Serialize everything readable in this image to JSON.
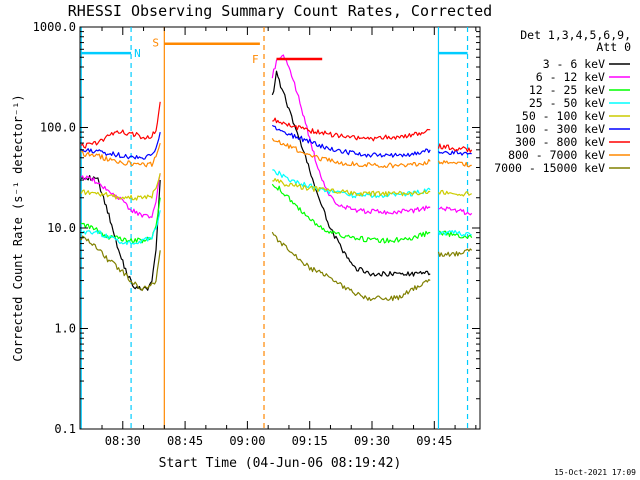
{
  "chart_data": {
    "type": "line",
    "title": "RHESSI Observing Summary Count Rates, Corrected",
    "xlabel": "Start Time (04-Jun-06 08:19:42)",
    "ylabel": "Corrected Count Rate (s⁻¹ detector⁻¹)",
    "y_scale": "log",
    "ylim": [
      0.1,
      1000
    ],
    "xlim": [
      "08:19:42",
      "09:56:00"
    ],
    "y_ticks": [
      {
        "value": 1000,
        "label": "1000.0"
      },
      {
        "value": 100,
        "label": "100.0"
      },
      {
        "value": 10,
        "label": "10.0"
      },
      {
        "value": 1,
        "label": "1.0"
      },
      {
        "value": 0.1,
        "label": "0.1"
      }
    ],
    "x_ticks": [
      {
        "value": "08:30",
        "label": "08:30"
      },
      {
        "value": "08:45",
        "label": "08:45"
      },
      {
        "value": "09:00",
        "label": "09:00"
      },
      {
        "value": "09:15",
        "label": "09:15"
      },
      {
        "value": "09:30",
        "label": "09:30"
      },
      {
        "value": "09:45",
        "label": "09:45"
      }
    ],
    "legend": {
      "position": "right",
      "header": [
        "Det 1,3,4,5,6,9,",
        "Att 0"
      ]
    },
    "series": [
      {
        "name": "3 - 6 keV",
        "color": "#000000",
        "segments": [
          {
            "x": [
              "08:20",
              "08:24",
              "08:27",
              "08:29",
              "08:31",
              "08:33",
              "08:35",
              "08:36",
              "08:37",
              "08:38",
              "08:39"
            ],
            "y": [
              33,
              30,
              12,
              6,
              3.5,
              2.5,
              2.5,
              2.5,
              3,
              6,
              30
            ]
          },
          {
            "x": [
              "09:06",
              "09:07",
              "09:08",
              "09:09",
              "09:10",
              "09:12",
              "09:14",
              "09:16",
              "09:18",
              "09:20",
              "09:22",
              "09:24",
              "09:26",
              "09:30",
              "09:34",
              "09:38",
              "09:42",
              "09:44"
            ],
            "y": [
              200,
              350,
              260,
              200,
              150,
              90,
              50,
              28,
              16,
              10,
              7,
              5,
              4,
              3.5,
              3.5,
              3.5,
              3.5,
              3.5
            ]
          }
        ]
      },
      {
        "name": "6 - 12 keV",
        "color": "#ff00ff",
        "segments": [
          {
            "x": [
              "08:20",
              "08:23",
              "08:26",
              "08:29",
              "08:32",
              "08:35",
              "08:37",
              "08:38",
              "08:39"
            ],
            "y": [
              33,
              30,
              25,
              20,
              15,
              13,
              13,
              18,
              35
            ]
          },
          {
            "x": [
              "09:06",
              "09:07",
              "09:08",
              "09:09",
              "09:10",
              "09:12",
              "09:14",
              "09:16",
              "09:18",
              "09:20",
              "09:22",
              "09:26",
              "09:30",
              "09:35",
              "09:40",
              "09:44"
            ],
            "y": [
              320,
              460,
              520,
              500,
              400,
              220,
              110,
              55,
              30,
              20,
              17,
              15,
              14.5,
              14.5,
              15,
              16
            ]
          },
          {
            "x": [
              "09:46",
              "09:50",
              "09:54"
            ],
            "y": [
              16,
              15,
              14
            ]
          }
        ]
      },
      {
        "name": "12 - 25 keV",
        "color": "#00ff00",
        "segments": [
          {
            "x": [
              "08:20",
              "08:23",
              "08:26",
              "08:29",
              "08:32",
              "08:35",
              "08:37",
              "08:38",
              "08:39"
            ],
            "y": [
              11,
              10,
              8,
              8,
              7.5,
              7.5,
              8,
              10,
              20
            ]
          },
          {
            "x": [
              "09:06",
              "09:08",
              "09:10",
              "09:12",
              "09:15",
              "09:18",
              "09:22",
              "09:26",
              "09:30",
              "09:35",
              "09:40",
              "09:44"
            ],
            "y": [
              28,
              24,
              20,
              16,
              12,
              10,
              8.5,
              8,
              7.5,
              7.5,
              8,
              9
            ]
          },
          {
            "x": [
              "09:46",
              "09:50",
              "09:54"
            ],
            "y": [
              9,
              8.5,
              8
            ]
          }
        ]
      },
      {
        "name": "25 - 50 keV",
        "color": "#00ffff",
        "segments": [
          {
            "x": [
              "08:20",
              "08:24",
              "08:27",
              "08:30",
              "08:33",
              "08:35",
              "08:37",
              "08:38",
              "08:39"
            ],
            "y": [
              9,
              9,
              8,
              7,
              7,
              7.5,
              8,
              10,
              15
            ]
          },
          {
            "x": [
              "09:06",
              "09:08",
              "09:10",
              "09:14",
              "09:18",
              "09:22",
              "09:26",
              "09:30",
              "09:35",
              "09:40",
              "09:44"
            ],
            "y": [
              38,
              34,
              30,
              27,
              24,
              22,
              21,
              21,
              21,
              22,
              24
            ]
          },
          {
            "x": [
              "09:46",
              "09:50",
              "09:54"
            ],
            "y": [
              9,
              9,
              8.5
            ]
          }
        ]
      },
      {
        "name": "50 - 100 keV",
        "color": "#cccc00",
        "segments": [
          {
            "x": [
              "08:20",
              "08:24",
              "08:27",
              "08:30",
              "08:33",
              "08:35",
              "08:37",
              "08:38",
              "08:39"
            ],
            "y": [
              23,
              22,
              21,
              20,
              20,
              20,
              21,
              24,
              35
            ]
          },
          {
            "x": [
              "09:06",
              "09:10",
              "09:14",
              "09:18",
              "09:22",
              "09:26",
              "09:30",
              "09:35",
              "09:40",
              "09:44"
            ],
            "y": [
              30,
              27,
              25,
              24,
              23,
              22,
              22,
              22,
              22,
              23
            ]
          },
          {
            "x": [
              "09:46",
              "09:50",
              "09:54"
            ],
            "y": [
              23,
              22,
              22
            ]
          }
        ]
      },
      {
        "name": "100 - 300 keV",
        "color": "#0000ff",
        "segments": [
          {
            "x": [
              "08:20",
              "08:24",
              "08:27",
              "08:30",
              "08:33",
              "08:35",
              "08:37",
              "08:38",
              "08:39"
            ],
            "y": [
              60,
              58,
              55,
              52,
              50,
              50,
              52,
              60,
              90
            ]
          },
          {
            "x": [
              "09:06",
              "09:10",
              "09:14",
              "09:18",
              "09:22",
              "09:26",
              "09:30",
              "09:35",
              "09:40",
              "09:44"
            ],
            "y": [
              100,
              85,
              75,
              65,
              58,
              55,
              53,
              53,
              55,
              60
            ]
          },
          {
            "x": [
              "09:46",
              "09:50",
              "09:54"
            ],
            "y": [
              58,
              56,
              55
            ]
          }
        ]
      },
      {
        "name": "300 - 800 keV",
        "color": "#ff0000",
        "segments": [
          {
            "x": [
              "08:20",
              "08:24",
              "08:27",
              "08:30",
              "08:33",
              "08:35",
              "08:37",
              "08:38",
              "08:39"
            ],
            "y": [
              65,
              70,
              85,
              90,
              85,
              80,
              82,
              95,
              180
            ]
          },
          {
            "x": [
              "09:06",
              "09:10",
              "09:14",
              "09:18",
              "09:22",
              "09:26",
              "09:30",
              "09:35",
              "09:40",
              "09:44"
            ],
            "y": [
              120,
              105,
              95,
              88,
              82,
              78,
              78,
              80,
              85,
              95
            ]
          },
          {
            "x": [
              "09:46",
              "09:50",
              "09:54"
            ],
            "y": [
              65,
              62,
              60
            ]
          },
          {
            "x": [
              "09:07",
              "09:18"
            ],
            "y": [
              480,
              480
            ]
          }
        ]
      },
      {
        "name": "800 - 7000 keV",
        "color": "#ff8800",
        "segments": [
          {
            "x": [
              "08:20",
              "08:24",
              "08:27",
              "08:30",
              "08:33",
              "08:35",
              "08:37",
              "08:38",
              "08:39"
            ],
            "y": [
              55,
              52,
              48,
              45,
              43,
              42,
              43,
              50,
              70
            ]
          },
          {
            "x": [
              "09:06",
              "09:10",
              "09:14",
              "09:18",
              "09:22",
              "09:26",
              "09:30",
              "09:35",
              "09:40",
              "09:44"
            ],
            "y": [
              75,
              65,
              55,
              48,
              45,
              43,
              42,
              42,
              43,
              46
            ]
          },
          {
            "x": [
              "09:46",
              "09:50",
              "09:54"
            ],
            "y": [
              45,
              44,
              42
            ]
          },
          {
            "x": [
              "08:40",
              "09:03"
            ],
            "y": [
              680,
              680
            ]
          }
        ]
      },
      {
        "name": "7000 - 15000 keV",
        "color": "#808000",
        "segments": [
          {
            "x": [
              "08:20",
              "08:23",
              "08:26",
              "08:29",
              "08:32",
              "08:34",
              "08:36",
              "08:38",
              "08:39"
            ],
            "y": [
              8,
              7,
              5,
              4,
              3,
              2.5,
              2.5,
              3,
              6
            ]
          },
          {
            "x": [
              "09:06",
              "09:08",
              "09:10",
              "09:12",
              "09:15",
              "09:18",
              "09:21",
              "09:24",
              "09:28",
              "09:32",
              "09:36",
              "09:40",
              "09:44"
            ],
            "y": [
              9,
              7,
              6,
              5,
              4,
              3.5,
              3,
              2.5,
              2,
              2,
              2,
              2.5,
              3
            ]
          },
          {
            "x": [
              "09:46",
              "09:50",
              "09:54"
            ],
            "y": [
              5.5,
              5.5,
              6
            ]
          }
        ]
      }
    ],
    "annotations": [
      {
        "label": "N",
        "x": "08:32",
        "color": "#00ccff",
        "style": "dashed",
        "y": 550
      },
      {
        "label": "S",
        "x": "08:40",
        "color": "#ff8800",
        "style": "solid",
        "y": 700
      },
      {
        "label": "F",
        "x": "09:04",
        "color": "#ff8800",
        "style": "dashed",
        "y": 480
      }
    ],
    "vertical_lines": [
      {
        "x": "08:20",
        "color": "#00ccff",
        "style": "solid"
      },
      {
        "x": "08:32",
        "color": "#00ccff",
        "style": "dashed"
      },
      {
        "x": "08:40",
        "color": "#ff8800",
        "style": "solid"
      },
      {
        "x": "09:04",
        "color": "#ff8800",
        "style": "dashed"
      },
      {
        "x": "09:46",
        "color": "#00ccff",
        "style": "solid"
      },
      {
        "x": "09:53",
        "color": "#00ccff",
        "style": "dashed"
      }
    ],
    "night_bars": [
      {
        "from": "08:20",
        "to": "08:32",
        "y": 550,
        "color": "#00ccff"
      },
      {
        "from": "09:46",
        "to": "09:53",
        "y": 550,
        "color": "#00ccff"
      }
    ]
  },
  "footer": {
    "date_stamp": "15-Oct-2021 17:09"
  }
}
